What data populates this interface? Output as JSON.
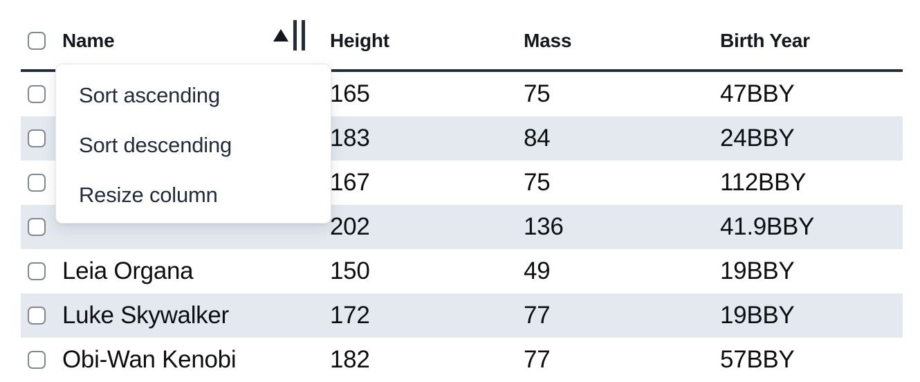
{
  "table": {
    "columns": [
      {
        "label": "Name",
        "sorted": "ascending"
      },
      {
        "label": "Height"
      },
      {
        "label": "Mass"
      },
      {
        "label": "Birth Year"
      }
    ],
    "rows": [
      {
        "name": "",
        "height": "165",
        "mass": "75",
        "birth_year": "47BBY"
      },
      {
        "name": "",
        "height": "183",
        "mass": "84",
        "birth_year": "24BBY"
      },
      {
        "name": "",
        "height": "167",
        "mass": "75",
        "birth_year": "112BBY"
      },
      {
        "name": "",
        "height": "202",
        "mass": "136",
        "birth_year": "41.9BBY"
      },
      {
        "name": "Leia Organa",
        "height": "150",
        "mass": "49",
        "birth_year": "19BBY"
      },
      {
        "name": "Luke Skywalker",
        "height": "172",
        "mass": "77",
        "birth_year": "19BBY"
      },
      {
        "name": "Obi-Wan Kenobi",
        "height": "182",
        "mass": "77",
        "birth_year": "57BBY"
      }
    ]
  },
  "context_menu": {
    "items": [
      {
        "label": "Sort ascending"
      },
      {
        "label": "Sort descending"
      },
      {
        "label": "Resize column"
      }
    ]
  },
  "icons": {
    "sort_indicator": "sort-ascending-triangle",
    "resize": "double-bar-resize-handle"
  },
  "colors": {
    "header_border": "#232d3c",
    "stripe_row": "#e4e8ef",
    "cell_text": "#0d0e10",
    "header_text": "#14181d",
    "menu_text": "#202b3b",
    "checkbox_border": "#81878e",
    "background": "#ffffff"
  }
}
